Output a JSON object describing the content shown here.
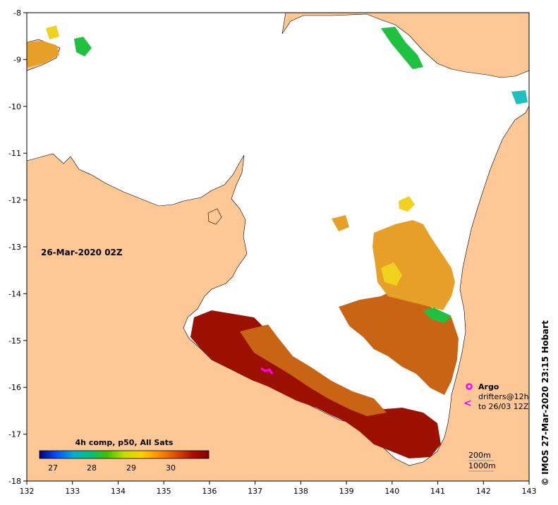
{
  "map": {
    "timestamp": "26-Mar-2020 02Z",
    "credit": "© IMOS 27-Mar-2020 23:15 Hobart",
    "longitude_ticks": [
      "132",
      "133",
      "134",
      "135",
      "136",
      "137",
      "138",
      "139",
      "140",
      "141",
      "142",
      "143"
    ],
    "latitude_ticks": [
      "-8",
      "-9",
      "-10",
      "-11",
      "-12",
      "-13",
      "-14",
      "-15",
      "-16",
      "-17",
      "-18"
    ]
  },
  "legend": {
    "argo_label": "Argo",
    "drifters_label": "drifters@12h",
    "drifters_period": "to 26/03 12Z",
    "argo_color": "#ff00ff",
    "isobath_200": "200m",
    "isobath_1000": "1000m"
  },
  "colorbar": {
    "title": "4h comp, p50, All Sats",
    "labels": [
      "27",
      "28",
      "29",
      "30"
    ],
    "colors": [
      "#000080",
      "#0050ff",
      "#00b0d0",
      "#00c080",
      "#40c000",
      "#c0e000",
      "#ffd000",
      "#ff9000",
      "#e05000",
      "#b01000",
      "#800000"
    ]
  },
  "colors": {
    "land": "#fdc896",
    "coast": "#000000",
    "sst_hot": "#9b1000",
    "sst_warm": "#c86414",
    "sst_mid": "#e6a028",
    "sst_yellow": "#f0d21e",
    "sst_green": "#20c040",
    "sst_cyan": "#20c0c0"
  }
}
